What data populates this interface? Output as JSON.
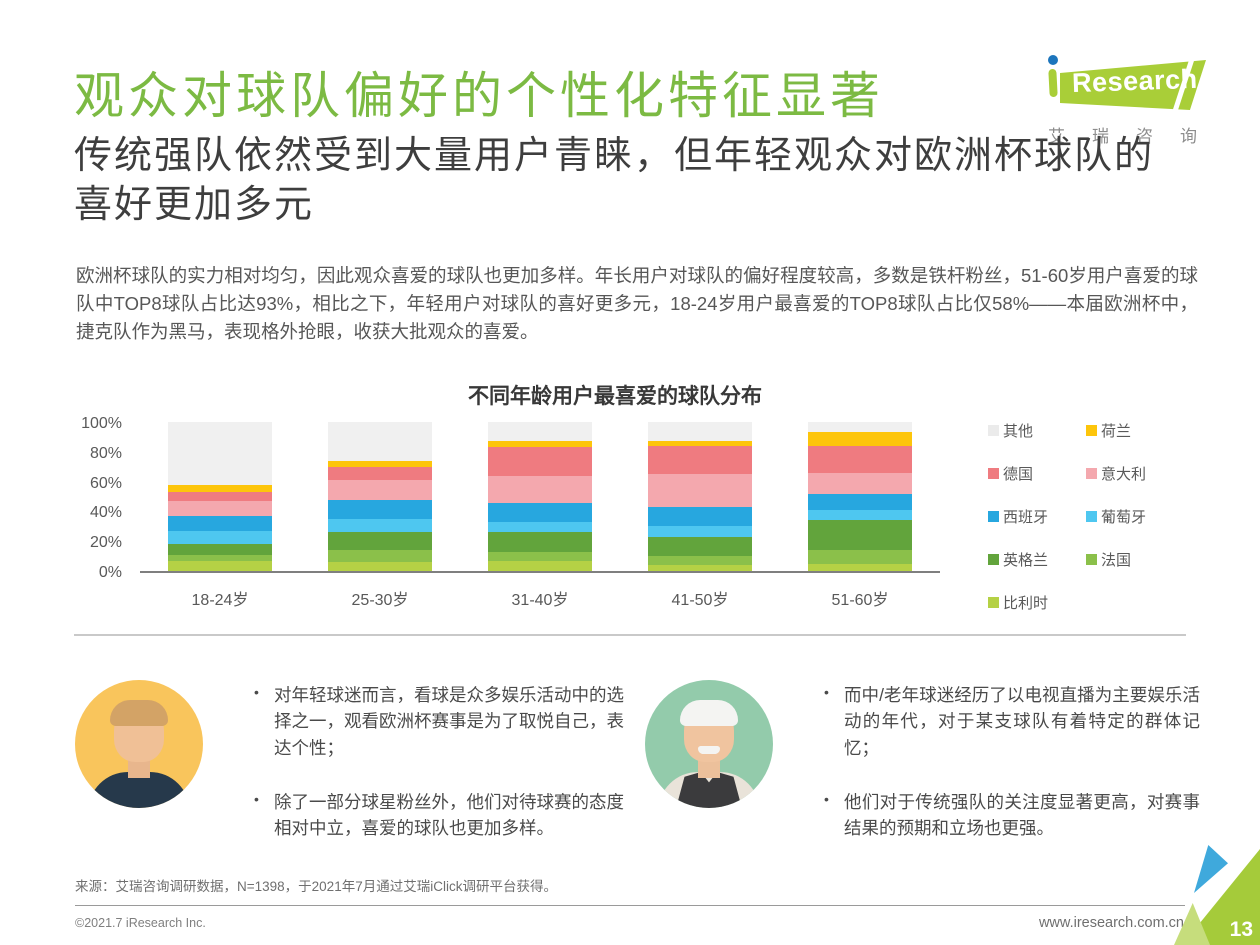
{
  "header": {
    "title": "观众对球队偏好的个性化特征显著",
    "subtitle": "传统强队依然受到大量用户青睐，但年轻观众对欧洲杯球队的喜好更加多元",
    "logo": {
      "brand": "Research",
      "subtext": "艾瑞咨询"
    }
  },
  "intro": {
    "text": "欧洲杯球队的实力相对均匀，因此观众喜爱的球队也更加多样。年长用户对球队的偏好程度较高，多数是铁杆粉丝，51-60岁用户喜爱的球队中TOP8球队占比达93%，相比之下，年轻用户对球队的喜好更多元，18-24岁用户最喜爱的TOP8球队占比仅58%——本届欧洲杯中，捷克队作为黑马，表现格外抢眼，收获大批观众的喜爱。"
  },
  "chart_data": {
    "type": "bar",
    "stacked": true,
    "title": "不同年龄用户最喜爱的球队分布",
    "categories": [
      "18-24岁",
      "25-30岁",
      "31-40岁",
      "41-50岁",
      "51-60岁"
    ],
    "unit": "%",
    "ylim": [
      0,
      100
    ],
    "y_ticks": [
      "0%",
      "20%",
      "40%",
      "60%",
      "80%",
      "100%"
    ],
    "grid": false,
    "legend_position": "right",
    "series": [
      {
        "name": "比利时",
        "color": "#b5d145",
        "values": [
          7,
          6,
          7,
          4,
          5
        ]
      },
      {
        "name": "法国",
        "color": "#8bc04a",
        "values": [
          4,
          8,
          6,
          6,
          9
        ]
      },
      {
        "name": "英格兰",
        "color": "#62a43c",
        "values": [
          7,
          12,
          13,
          13,
          20
        ]
      },
      {
        "name": "葡萄牙",
        "color": "#4ec7f0",
        "values": [
          9,
          9,
          7,
          7,
          7
        ]
      },
      {
        "name": "西班牙",
        "color": "#27a7df",
        "values": [
          10,
          13,
          13,
          13,
          11
        ]
      },
      {
        "name": "意大利",
        "color": "#f4a8ae",
        "values": [
          10,
          13,
          18,
          22,
          14
        ]
      },
      {
        "name": "德国",
        "color": "#ef7b80",
        "values": [
          6,
          9,
          19,
          19,
          18
        ]
      },
      {
        "name": "荷兰",
        "color": "#fdc50b",
        "values": [
          5,
          4,
          4,
          3,
          9
        ]
      },
      {
        "name": "其他",
        "color": "#f0f0f0",
        "values": [
          42,
          26,
          13,
          13,
          7
        ]
      }
    ],
    "legend": [
      {
        "label": "其他",
        "color": "#ebebeb"
      },
      {
        "label": "荷兰",
        "color": "#fdc50b"
      },
      {
        "label": "德国",
        "color": "#ef7b80"
      },
      {
        "label": "意大利",
        "color": "#f4a8ae"
      },
      {
        "label": "西班牙",
        "color": "#27a7df"
      },
      {
        "label": "葡萄牙",
        "color": "#4ec7f0"
      },
      {
        "label": "英格兰",
        "color": "#62a43c"
      },
      {
        "label": "法国",
        "color": "#8bc04a"
      },
      {
        "label": "比利时",
        "color": "#b5d145"
      }
    ]
  },
  "insights": {
    "left": {
      "bullets": [
        "对年轻球迷而言，看球是众多娱乐活动中的选择之一，观看欧洲杯赛事是为了取悦自己，表达个性；",
        "除了一部分球星粉丝外，他们对待球赛的态度相对中立，喜爱的球队也更加多样。"
      ]
    },
    "right": {
      "bullets": [
        "而中/老年球迷经历了以电视直播为主要娱乐活动的年代，对于某支球队有着特定的群体记忆；",
        "他们对于传统强队的关注度显著更高，对赛事结果的预期和立场也更强。"
      ]
    }
  },
  "footer": {
    "source": "来源：艾瑞咨询调研数据，N=1398，于2021年7月通过艾瑞iClick调研平台获得。",
    "copyright": "©2021.7 iResearch Inc.",
    "website": "www.iresearch.com.cn",
    "page": "13"
  },
  "colors": {
    "title_green": "#7cba43",
    "logo_green": "#a9ce38",
    "logo_blue": "#1c75bc",
    "avatar_left_bg": "#f9c55c",
    "avatar_right_bg": "#93cbab"
  }
}
